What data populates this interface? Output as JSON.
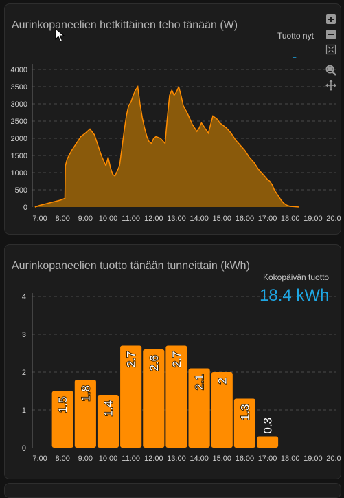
{
  "colors": {
    "accent": "#ff8c00",
    "area_fill": "#8a5a0b",
    "stat_value": "#1ea7e4",
    "grid": "#4a4a4a"
  },
  "power_card": {
    "title": "Aurinkopaneelien hetkittäinen teho tänään (W)",
    "stat_label": "Tuotto nyt",
    "stat_value": "-",
    "toolbar_icons": [
      "zoom-in-icon",
      "zoom-out-icon",
      "reset-zoom-icon",
      "zoom-select-icon",
      "pan-icon"
    ]
  },
  "energy_card": {
    "title": "Aurinkopaneelien tuotto tänään tunneittain (kWh)",
    "stat_label": "Kokopäivän tuotto",
    "stat_value": "18.4 kWh"
  },
  "chart_data": [
    {
      "type": "area",
      "title": "Aurinkopaneelien hetkittäinen teho tänään (W)",
      "x_tick_labels": [
        "7:00",
        "8:00",
        "9:00",
        "10:00",
        "11:00",
        "12:00",
        "13:00",
        "14:00",
        "15:00",
        "16:00",
        "17:00",
        "18:00",
        "19:00",
        "20:00"
      ],
      "y_tick_labels": [
        "0",
        "500",
        "1000",
        "1500",
        "2000",
        "2500",
        "3000",
        "3500",
        "4000"
      ],
      "xlim": [
        "6:40",
        "20:00"
      ],
      "ylim": [
        0,
        4000
      ],
      "grid": true,
      "x_hours": [
        6.78,
        7.0,
        7.3,
        7.6,
        7.9,
        8.1,
        8.12,
        8.2,
        8.4,
        8.6,
        8.8,
        9.0,
        9.2,
        9.4,
        9.5,
        9.6,
        9.7,
        9.8,
        9.9,
        10.0,
        10.1,
        10.2,
        10.3,
        10.4,
        10.5,
        10.6,
        10.7,
        10.8,
        10.9,
        11.0,
        11.1,
        11.2,
        11.3,
        11.4,
        11.5,
        11.6,
        11.7,
        11.8,
        11.9,
        12.0,
        12.1,
        12.3,
        12.5,
        12.6,
        12.7,
        12.8,
        12.9,
        13.0,
        13.1,
        13.2,
        13.3,
        13.5,
        13.7,
        13.9,
        14.0,
        14.1,
        14.2,
        14.3,
        14.4,
        14.5,
        14.6,
        14.8,
        14.9,
        15.0,
        15.2,
        15.4,
        15.6,
        15.8,
        16.0,
        16.2,
        16.4,
        16.6,
        16.8,
        17.0,
        17.1,
        17.2,
        17.3,
        17.4,
        17.5,
        17.6,
        17.7,
        17.8,
        17.9,
        18.0,
        18.2,
        18.4
      ],
      "y_watts": [
        0,
        50,
        100,
        150,
        200,
        250,
        1200,
        1400,
        1650,
        1850,
        2050,
        2150,
        2270,
        2100,
        1900,
        1700,
        1500,
        1350,
        1200,
        1450,
        1150,
        950,
        900,
        1050,
        1200,
        1700,
        2200,
        2650,
        2950,
        3050,
        3250,
        3400,
        3500,
        3000,
        2600,
        2300,
        2050,
        1900,
        1850,
        2000,
        2050,
        2000,
        1850,
        2600,
        3250,
        3400,
        3250,
        3350,
        3500,
        3250,
        2950,
        2700,
        2400,
        2200,
        2300,
        2450,
        2350,
        2250,
        2150,
        2400,
        2650,
        2550,
        2450,
        2400,
        2300,
        2150,
        1950,
        1800,
        1650,
        1450,
        1300,
        1100,
        950,
        800,
        750,
        650,
        500,
        400,
        300,
        200,
        120,
        70,
        40,
        20,
        10,
        0
      ]
    },
    {
      "type": "bar",
      "title": "Aurinkopaneelien tuotto tänään tunneittain (kWh)",
      "categories": [
        "8:00",
        "9:00",
        "10:00",
        "11:00",
        "12:00",
        "13:00",
        "14:00",
        "15:00",
        "16:00",
        "17:00"
      ],
      "values": [
        1.5,
        1.8,
        1.4,
        2.7,
        2.6,
        2.7,
        2.1,
        2.0,
        1.3,
        0.3
      ],
      "x_tick_labels": [
        "7:00",
        "8:00",
        "9:00",
        "10:00",
        "11:00",
        "12:00",
        "13:00",
        "14:00",
        "15:00",
        "16:00",
        "17:00",
        "18:00",
        "19:00",
        "20:00"
      ],
      "y_tick_labels": [
        "0",
        "1",
        "2",
        "3",
        "4"
      ],
      "ylim": [
        0,
        4
      ],
      "grid": true
    }
  ]
}
